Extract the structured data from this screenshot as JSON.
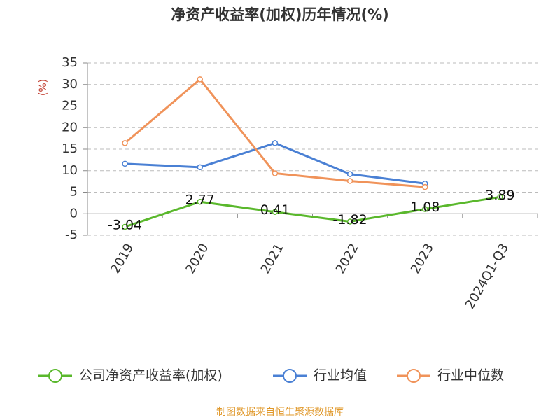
{
  "chart_data": {
    "type": "line",
    "title": "净资产收益率(加权)历年情况(%)",
    "y_label": "(%)",
    "categories": [
      "2019",
      "2020",
      "2021",
      "2022",
      "2023",
      "2024Q1-Q3"
    ],
    "series": [
      {
        "name": "公司净资产收益率(加权)",
        "color": "#5ab82c",
        "values": [
          -3.04,
          2.77,
          0.41,
          -1.82,
          1.08,
          3.89
        ],
        "data_labels": true
      },
      {
        "name": "行业均值",
        "color": "#4a80d4",
        "values": [
          11.6,
          10.8,
          16.4,
          9.2,
          7.0,
          null
        ]
      },
      {
        "name": "行业中位数",
        "color": "#f0935a",
        "values": [
          16.4,
          31.2,
          9.4,
          7.6,
          6.2,
          null
        ]
      }
    ],
    "ylim": [
      -5,
      35
    ],
    "yticks": [
      -5,
      0,
      5,
      10,
      15,
      20,
      25,
      30,
      35
    ],
    "grid": true,
    "source": "制图数据来自恒生聚源数据库"
  }
}
